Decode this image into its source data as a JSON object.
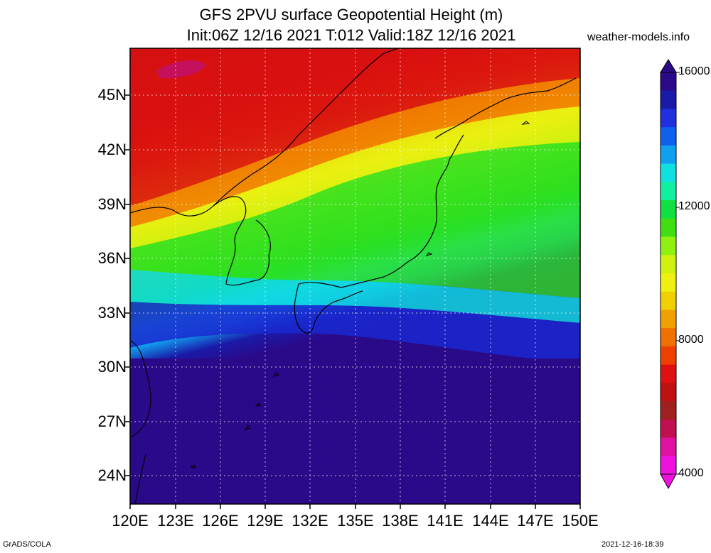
{
  "header": {
    "title_line1": "GFS 2PVU surface Geopotential Height (m)",
    "title_line2": "Init:06Z 12/16 2021 T:012 Valid:18Z 12/16 2021",
    "site": "weather-models.info"
  },
  "axes": {
    "y_ticks": [
      "45N",
      "42N",
      "39N",
      "36N",
      "33N",
      "30N",
      "27N",
      "24N"
    ],
    "x_ticks": [
      "120E",
      "123E",
      "126E",
      "129E",
      "132E",
      "135E",
      "138E",
      "141E",
      "144E",
      "147E",
      "150E"
    ]
  },
  "colorbar": {
    "labels": [
      "16000",
      "12000",
      "8000",
      "4000"
    ],
    "colors": [
      "#2b0a8a",
      "#1a1aa8",
      "#2030e0",
      "#1060f0",
      "#10a0f0",
      "#10e0e0",
      "#10f0a0",
      "#10e040",
      "#40e010",
      "#90f010",
      "#d0f010",
      "#f0f010",
      "#f0d000",
      "#f0a000",
      "#f07000",
      "#f04000",
      "#e01010",
      "#c01010",
      "#a02020",
      "#c01050",
      "#e010a0",
      "#f010e0"
    ]
  },
  "footer": {
    "left": "GrADS/COLA",
    "right": "2021-12-16-18:39"
  }
}
